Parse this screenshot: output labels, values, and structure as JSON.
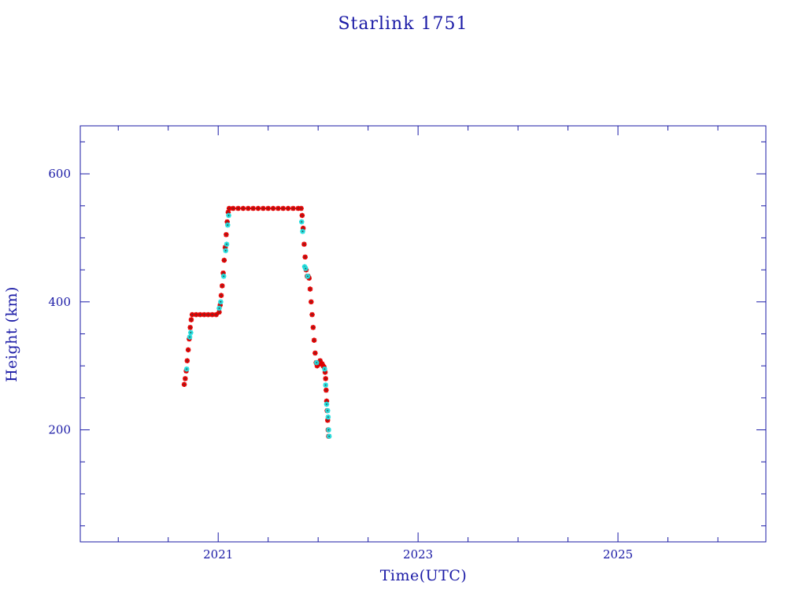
{
  "chart_data": {
    "type": "scatter",
    "title": "Starlink 1751",
    "xlabel": "Time(UTC)",
    "ylabel": "Height (km)",
    "xlim": [
      2019.62,
      2026.48
    ],
    "ylim": [
      25,
      675
    ],
    "x_ticks": [
      2021,
      2023,
      2025
    ],
    "x_tick_labels": [
      "2021",
      "2023",
      "2025"
    ],
    "y_ticks": [
      200,
      400,
      600
    ],
    "y_tick_labels": [
      "200",
      "400",
      "600"
    ],
    "grid": false,
    "colors": {
      "axis": "#1a1aa6",
      "primary": "#e00000",
      "secondary": "#22dddd",
      "marker_edge": "#404040"
    },
    "series": [
      {
        "color": "#e00000",
        "values": [
          [
            2020.66,
            271
          ],
          [
            2020.67,
            280
          ],
          [
            2020.68,
            292
          ],
          [
            2020.69,
            308
          ],
          [
            2020.7,
            325
          ],
          [
            2020.71,
            342
          ],
          [
            2020.72,
            360
          ],
          [
            2020.73,
            372
          ],
          [
            2020.74,
            380
          ],
          [
            2020.78,
            380
          ],
          [
            2020.82,
            380
          ],
          [
            2020.86,
            380
          ],
          [
            2020.9,
            380
          ],
          [
            2020.94,
            380
          ],
          [
            2020.98,
            380
          ],
          [
            2021.01,
            384
          ],
          [
            2021.02,
            395
          ],
          [
            2021.03,
            410
          ],
          [
            2021.04,
            425
          ],
          [
            2021.05,
            445
          ],
          [
            2021.06,
            465
          ],
          [
            2021.07,
            485
          ],
          [
            2021.08,
            505
          ],
          [
            2021.09,
            525
          ],
          [
            2021.1,
            540
          ],
          [
            2021.11,
            546
          ],
          [
            2021.15,
            546
          ],
          [
            2021.2,
            546
          ],
          [
            2021.25,
            546
          ],
          [
            2021.3,
            546
          ],
          [
            2021.35,
            546
          ],
          [
            2021.4,
            546
          ],
          [
            2021.45,
            546
          ],
          [
            2021.5,
            546
          ],
          [
            2021.55,
            546
          ],
          [
            2021.6,
            546
          ],
          [
            2021.65,
            546
          ],
          [
            2021.7,
            546
          ],
          [
            2021.75,
            546
          ],
          [
            2021.8,
            546
          ],
          [
            2021.83,
            546
          ],
          [
            2021.84,
            535
          ],
          [
            2021.85,
            515
          ],
          [
            2021.86,
            490
          ],
          [
            2021.87,
            470
          ],
          [
            2021.88,
            450
          ],
          [
            2021.89,
            440
          ],
          [
            2021.9,
            440
          ],
          [
            2021.91,
            437
          ],
          [
            2021.92,
            420
          ],
          [
            2021.93,
            400
          ],
          [
            2021.94,
            380
          ],
          [
            2021.95,
            360
          ],
          [
            2021.96,
            340
          ],
          [
            2021.97,
            320
          ],
          [
            2021.98,
            305
          ],
          [
            2021.99,
            300
          ],
          [
            2022.0,
            302
          ],
          [
            2022.01,
            305
          ],
          [
            2022.02,
            308
          ],
          [
            2022.03,
            304
          ],
          [
            2022.04,
            303
          ],
          [
            2022.05,
            300
          ],
          [
            2022.06,
            298
          ],
          [
            2022.07,
            290
          ],
          [
            2022.075,
            280
          ],
          [
            2022.08,
            262
          ],
          [
            2022.085,
            245
          ],
          [
            2022.09,
            230
          ],
          [
            2022.095,
            215
          ],
          [
            2022.1,
            200
          ],
          [
            2022.105,
            190
          ]
        ]
      },
      {
        "color": "#22dddd",
        "values": [
          [
            2020.685,
            295
          ],
          [
            2020.715,
            345
          ],
          [
            2020.725,
            352
          ],
          [
            2021.01,
            390
          ],
          [
            2021.025,
            400
          ],
          [
            2021.055,
            440
          ],
          [
            2021.075,
            480
          ],
          [
            2021.085,
            490
          ],
          [
            2021.095,
            520
          ],
          [
            2021.105,
            535
          ],
          [
            2021.835,
            525
          ],
          [
            2021.845,
            510
          ],
          [
            2021.865,
            455
          ],
          [
            2021.875,
            452
          ],
          [
            2021.895,
            440
          ],
          [
            2021.985,
            305
          ],
          [
            2022.065,
            295
          ],
          [
            2022.075,
            270
          ],
          [
            2022.085,
            240
          ],
          [
            2022.095,
            230
          ],
          [
            2022.1,
            220
          ],
          [
            2022.105,
            200
          ],
          [
            2022.11,
            190
          ]
        ]
      }
    ]
  }
}
